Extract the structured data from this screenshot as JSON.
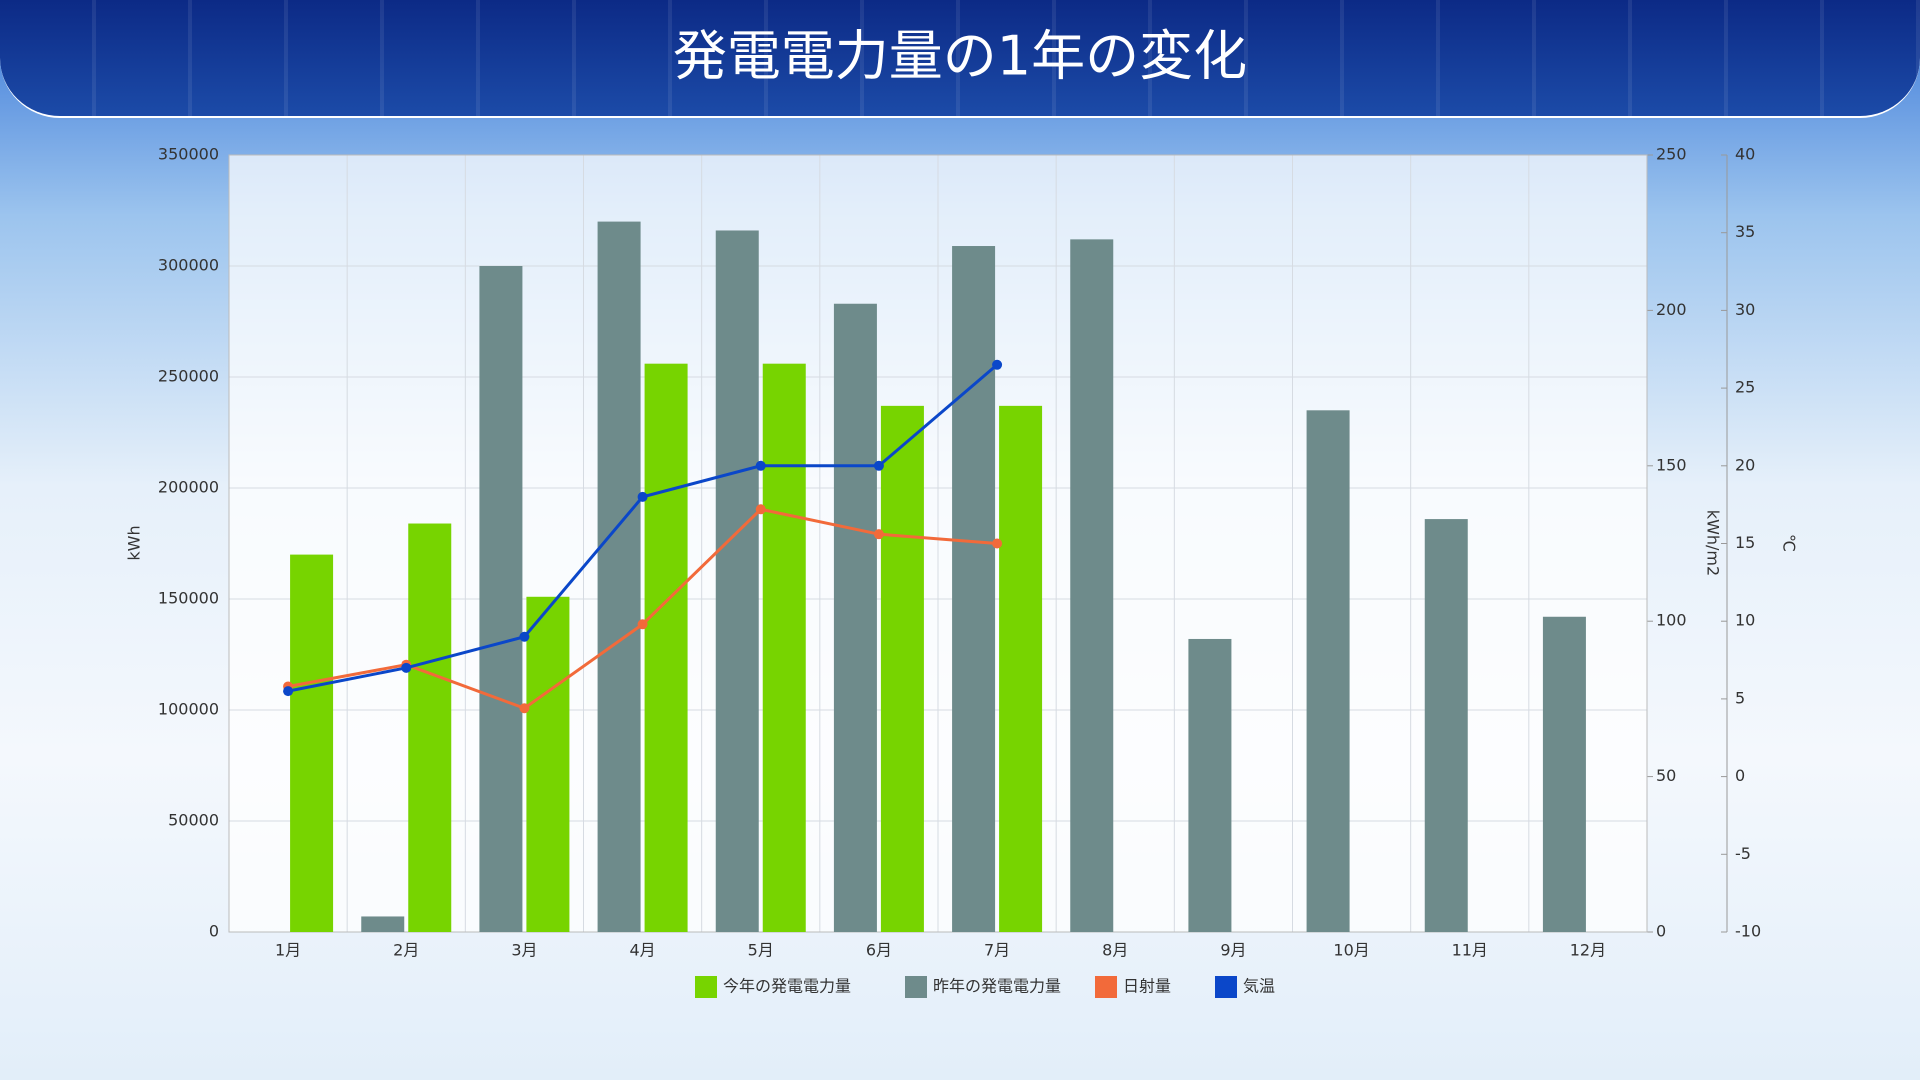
{
  "chart_data": {
    "type": "bar",
    "title": "発電電力量の1年の変化",
    "y_label": "kWh",
    "y2_label": "kWh/m2",
    "y3_label": "℃",
    "categories": [
      "1月",
      "2月",
      "3月",
      "4月",
      "5月",
      "6月",
      "7月",
      "8月",
      "9月",
      "10月",
      "11月",
      "12月"
    ],
    "series": [
      {
        "name": "今年の発電電力量",
        "type": "bar",
        "color": "#77d400",
        "axis": "y",
        "values": [
          170000,
          184000,
          151000,
          256000,
          256000,
          237000,
          237000,
          null,
          null,
          null,
          null,
          null
        ]
      },
      {
        "name": "昨年の発電電力量",
        "type": "bar",
        "color": "#6e8b8b",
        "axis": "y",
        "values": [
          null,
          7000,
          300000,
          320000,
          316000,
          283000,
          309000,
          312000,
          132000,
          235000,
          186000,
          142000
        ]
      },
      {
        "name": "日射量",
        "type": "line",
        "color": "#f26a3a",
        "axis": "y2",
        "values": [
          79,
          86,
          72,
          99,
          136,
          128,
          125,
          null,
          null,
          null,
          null,
          null
        ]
      },
      {
        "name": "気温",
        "type": "line",
        "color": "#0b47c9",
        "axis": "y3",
        "values": [
          5.5,
          7,
          9,
          18,
          20,
          20,
          26.5,
          null,
          null,
          null,
          null,
          null
        ]
      }
    ],
    "ylim": [
      0,
      350000
    ],
    "yticks": [
      0,
      50000,
      100000,
      150000,
      200000,
      250000,
      300000,
      350000
    ],
    "y2lim": [
      0,
      250
    ],
    "y2ticks": [
      0,
      50,
      100,
      150,
      200,
      250
    ],
    "y3lim": [
      -10,
      40
    ],
    "y3ticks": [
      -10,
      -5,
      0,
      5,
      10,
      15,
      20,
      25,
      30,
      35,
      40
    ],
    "grid": true,
    "legend": "bottom"
  }
}
